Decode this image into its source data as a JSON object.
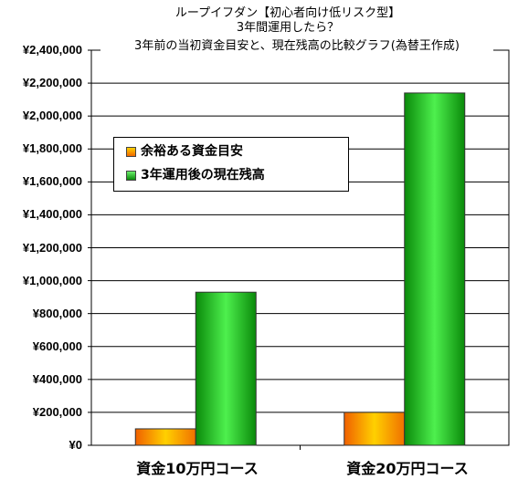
{
  "title": {
    "line1": "ループイフダン【初心者向け低リスク型】",
    "line2": "3年間運用したら？",
    "line3": "3年前の当初資金目安と、現在残高の比較グラフ(為替王作成)"
  },
  "chart_data": {
    "type": "bar",
    "categories": [
      "資金10万円コース",
      "資金20万円コース"
    ],
    "series": [
      {
        "name": "余裕ある資金目安",
        "values": [
          100000,
          200000
        ],
        "color": "#f7a11a"
      },
      {
        "name": "3年運用後の現在残高",
        "values": [
          930000,
          2140000
        ],
        "color": "#18b218"
      }
    ],
    "ylim": [
      0,
      2400000
    ],
    "y_ticks": [
      "¥0",
      "¥200,000",
      "¥400,000",
      "¥600,000",
      "¥800,000",
      "¥1,000,000",
      "¥1,200,000",
      "¥1,400,000",
      "¥1,600,000",
      "¥1,800,000",
      "¥2,000,000",
      "¥2,200,000",
      "¥2,400,000"
    ],
    "grid": true,
    "legend_position": "top-left"
  }
}
